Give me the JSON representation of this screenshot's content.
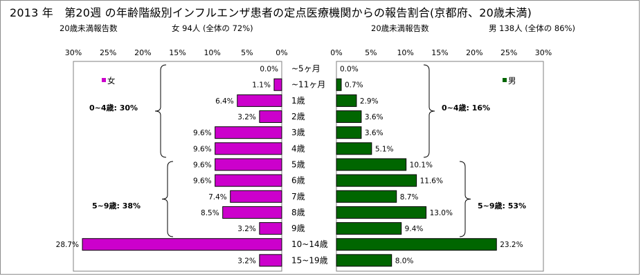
{
  "title": "2013 年　第20週 の年齢階級別インフルエンザ患者の定点医療機関からの報告割合(京都府、20歳未満)",
  "left_header": {
    "label": "20歳未満報告数",
    "count": "女  94人 (全体の  72%)"
  },
  "right_header": {
    "label": "20歳未満報告数",
    "count": "男  138人 (全体の  86%)"
  },
  "chart_data": [
    {
      "type": "bar",
      "orientation": "horizontal",
      "direction": "right-to-left",
      "series": [
        {
          "name": "女",
          "values": [
            0.0,
            1.1,
            6.4,
            3.2,
            9.6,
            9.6,
            9.6,
            9.6,
            7.4,
            8.5,
            3.2,
            28.7,
            3.2
          ]
        }
      ],
      "categories": [
        "~5ヶ月",
        "~11ヶ月",
        "1歳",
        "2歳",
        "3歳",
        "4歳",
        "5歳",
        "6歳",
        "7歳",
        "8歳",
        "9歳",
        "10~14歳",
        "15~19歳"
      ],
      "data_labels": [
        "0.0%",
        "1.1%",
        "6.4%",
        "3.2%",
        "9.6%",
        "9.6%",
        "9.6%",
        "9.6%",
        "7.4%",
        "8.5%",
        "3.2%",
        "28.7%",
        "3.2%"
      ],
      "xlim": [
        0,
        30
      ],
      "ticks": [
        "30%",
        "25%",
        "20%",
        "15%",
        "10%",
        "5%",
        "0%"
      ],
      "color": "#cc00cc",
      "legend": "女",
      "annotations": [
        "0~4歳: 30%",
        "5~9歳: 38%"
      ]
    },
    {
      "type": "bar",
      "orientation": "horizontal",
      "direction": "left-to-right",
      "series": [
        {
          "name": "男",
          "values": [
            0.0,
            0.7,
            2.9,
            3.6,
            3.6,
            5.1,
            10.1,
            11.6,
            8.7,
            13.0,
            9.4,
            23.2,
            8.0
          ]
        }
      ],
      "categories": [
        "~5ヶ月",
        "~11ヶ月",
        "1歳",
        "2歳",
        "3歳",
        "4歳",
        "5歳",
        "6歳",
        "7歳",
        "8歳",
        "9歳",
        "10~14歳",
        "15~19歳"
      ],
      "data_labels": [
        "0.0%",
        "0.7%",
        "2.9%",
        "3.6%",
        "3.6%",
        "5.1%",
        "10.1%",
        "11.6%",
        "8.7%",
        "13.0%",
        "9.4%",
        "23.2%",
        "8.0%"
      ],
      "xlim": [
        0,
        30
      ],
      "ticks": [
        "0%",
        "5%",
        "10%",
        "15%",
        "20%",
        "25%",
        "30%"
      ],
      "color": "#006600",
      "legend": "男",
      "annotations": [
        "0~4歳: 16%",
        "5~9歳: 53%"
      ]
    }
  ],
  "category_labels": [
    "~5ヶ月",
    "~11ヶ月",
    "1歳",
    "2歳",
    "3歳",
    "4歳",
    "5歳",
    "6歳",
    "7歳",
    "8歳",
    "9歳",
    "10~14歳",
    "15~19歳"
  ]
}
